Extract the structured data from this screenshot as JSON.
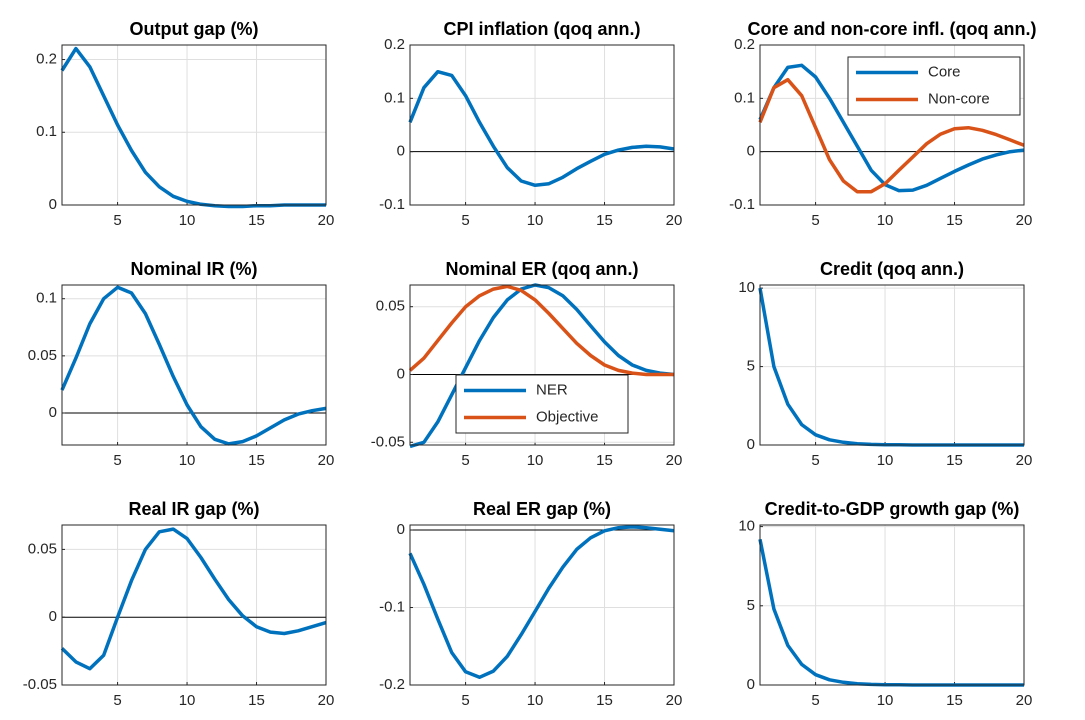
{
  "chart_data": [
    {
      "type": "line",
      "title": "Output gap (%)",
      "x": [
        1,
        2,
        3,
        4,
        5,
        6,
        7,
        8,
        9,
        10,
        11,
        12,
        13,
        14,
        15,
        16,
        17,
        18,
        19,
        20
      ],
      "xlim": [
        1,
        20
      ],
      "xticks": [
        5,
        10,
        15,
        20
      ],
      "ylim": [
        0,
        0.22
      ],
      "yticks": [
        0,
        0.1,
        0.2
      ],
      "grid": true,
      "series": [
        {
          "color": "#0072bd",
          "values": [
            0.185,
            0.215,
            0.19,
            0.15,
            0.11,
            0.075,
            0.045,
            0.025,
            0.012,
            0.005,
            0.001,
            -0.001,
            -0.002,
            -0.002,
            -0.001,
            -0.001,
            0,
            0,
            0,
            0
          ]
        }
      ]
    },
    {
      "type": "line",
      "title": "CPI inflation (qoq ann.)",
      "x": [
        1,
        2,
        3,
        4,
        5,
        6,
        7,
        8,
        9,
        10,
        11,
        12,
        13,
        14,
        15,
        16,
        17,
        18,
        19,
        20
      ],
      "xlim": [
        1,
        20
      ],
      "xticks": [
        5,
        10,
        15,
        20
      ],
      "ylim": [
        -0.1,
        0.2
      ],
      "yticks": [
        -0.1,
        0,
        0.1,
        0.2
      ],
      "grid": true,
      "series": [
        {
          "color": "#0072bd",
          "values": [
            0.055,
            0.12,
            0.15,
            0.143,
            0.105,
            0.055,
            0.01,
            -0.03,
            -0.055,
            -0.063,
            -0.06,
            -0.048,
            -0.032,
            -0.018,
            -0.005,
            0.003,
            0.008,
            0.01,
            0.009,
            0.005
          ]
        }
      ]
    },
    {
      "type": "line",
      "title": "Core and non-core infl. (qoq ann.)",
      "x": [
        1,
        2,
        3,
        4,
        5,
        6,
        7,
        8,
        9,
        10,
        11,
        12,
        13,
        14,
        15,
        16,
        17,
        18,
        19,
        20
      ],
      "xlim": [
        1,
        20
      ],
      "xticks": [
        5,
        10,
        15,
        20
      ],
      "ylim": [
        -0.1,
        0.2
      ],
      "yticks": [
        -0.1,
        0,
        0.1,
        0.2
      ],
      "grid": true,
      "legend": "northeast",
      "series": [
        {
          "name": "Core",
          "color": "#0072bd",
          "values": [
            0.06,
            0.12,
            0.158,
            0.162,
            0.14,
            0.1,
            0.055,
            0.01,
            -0.035,
            -0.062,
            -0.073,
            -0.072,
            -0.063,
            -0.05,
            -0.037,
            -0.025,
            -0.014,
            -0.006,
            0,
            0.003
          ]
        },
        {
          "name": "Non-core",
          "color": "#d95319",
          "values": [
            0.055,
            0.12,
            0.135,
            0.105,
            0.045,
            -0.015,
            -0.055,
            -0.075,
            -0.075,
            -0.06,
            -0.035,
            -0.01,
            0.015,
            0.033,
            0.043,
            0.045,
            0.04,
            0.032,
            0.022,
            0.012
          ]
        }
      ]
    },
    {
      "type": "line",
      "title": "Nominal IR (%)",
      "x": [
        1,
        2,
        3,
        4,
        5,
        6,
        7,
        8,
        9,
        10,
        11,
        12,
        13,
        14,
        15,
        16,
        17,
        18,
        19,
        20
      ],
      "xlim": [
        1,
        20
      ],
      "xticks": [
        5,
        10,
        15,
        20
      ],
      "ylim": [
        -0.028,
        0.112
      ],
      "yticks": [
        0,
        0.05,
        0.1
      ],
      "grid": true,
      "series": [
        {
          "color": "#0072bd",
          "values": [
            0.02,
            0.048,
            0.078,
            0.1,
            0.11,
            0.105,
            0.087,
            0.06,
            0.032,
            0.007,
            -0.012,
            -0.023,
            -0.027,
            -0.025,
            -0.02,
            -0.013,
            -0.006,
            -0.001,
            0.002,
            0.004
          ]
        }
      ]
    },
    {
      "type": "line",
      "title": "Nominal ER (qoq ann.)",
      "x": [
        1,
        2,
        3,
        4,
        5,
        6,
        7,
        8,
        9,
        10,
        11,
        12,
        13,
        14,
        15,
        16,
        17,
        18,
        19,
        20
      ],
      "xlim": [
        1,
        20
      ],
      "xticks": [
        5,
        10,
        15,
        20
      ],
      "ylim": [
        -0.052,
        0.066
      ],
      "yticks": [
        -0.05,
        0,
        0.05
      ],
      "grid": true,
      "legend": "south",
      "series": [
        {
          "name": "NER",
          "color": "#0072bd",
          "values": [
            -0.053,
            -0.05,
            -0.035,
            -0.015,
            0.005,
            0.025,
            0.042,
            0.055,
            0.063,
            0.066,
            0.064,
            0.058,
            0.048,
            0.036,
            0.024,
            0.014,
            0.007,
            0.003,
            0.001,
            0
          ]
        },
        {
          "name": "Objective",
          "color": "#d95319",
          "values": [
            0.003,
            0.012,
            0.025,
            0.038,
            0.05,
            0.058,
            0.063,
            0.065,
            0.062,
            0.055,
            0.045,
            0.034,
            0.023,
            0.014,
            0.007,
            0.003,
            0.001,
            0,
            0,
            0
          ]
        }
      ]
    },
    {
      "type": "line",
      "title": "Credit (qoq ann.)",
      "x": [
        1,
        2,
        3,
        4,
        5,
        6,
        7,
        8,
        9,
        10,
        11,
        12,
        13,
        14,
        15,
        16,
        17,
        18,
        19,
        20
      ],
      "xlim": [
        1,
        20
      ],
      "xticks": [
        5,
        10,
        15,
        20
      ],
      "ylim": [
        0,
        10.2
      ],
      "yticks": [
        0,
        5,
        10
      ],
      "grid": true,
      "series": [
        {
          "color": "#0072bd",
          "values": [
            10,
            5,
            2.6,
            1.3,
            0.65,
            0.33,
            0.17,
            0.08,
            0.04,
            0.02,
            0.01,
            0,
            0,
            0,
            0,
            0,
            0,
            0,
            0,
            0
          ]
        }
      ]
    },
    {
      "type": "line",
      "title": "Real IR gap (%)",
      "x": [
        1,
        2,
        3,
        4,
        5,
        6,
        7,
        8,
        9,
        10,
        11,
        12,
        13,
        14,
        15,
        16,
        17,
        18,
        19,
        20
      ],
      "xlim": [
        1,
        20
      ],
      "xticks": [
        5,
        10,
        15,
        20
      ],
      "ylim": [
        -0.05,
        0.068
      ],
      "yticks": [
        -0.05,
        0,
        0.05
      ],
      "grid": true,
      "series": [
        {
          "color": "#0072bd",
          "values": [
            -0.023,
            -0.033,
            -0.038,
            -0.028,
            0,
            0.027,
            0.05,
            0.063,
            0.065,
            0.058,
            0.044,
            0.028,
            0.013,
            0.001,
            -0.007,
            -0.011,
            -0.012,
            -0.01,
            -0.007,
            -0.004
          ]
        }
      ]
    },
    {
      "type": "line",
      "title": "Real ER gap (%)",
      "x": [
        1,
        2,
        3,
        4,
        5,
        6,
        7,
        8,
        9,
        10,
        11,
        12,
        13,
        14,
        15,
        16,
        17,
        18,
        19,
        20
      ],
      "xlim": [
        1,
        20
      ],
      "xticks": [
        5,
        10,
        15,
        20
      ],
      "ylim": [
        -0.2,
        0.0065
      ],
      "yticks": [
        -0.2,
        -0.1,
        0
      ],
      "grid": true,
      "series": [
        {
          "color": "#0072bd",
          "values": [
            -0.03,
            -0.07,
            -0.115,
            -0.158,
            -0.183,
            -0.19,
            -0.182,
            -0.163,
            -0.135,
            -0.105,
            -0.075,
            -0.048,
            -0.025,
            -0.01,
            -0.001,
            0.003,
            0.004,
            0.003,
            0.001,
            -0.001
          ]
        }
      ]
    },
    {
      "type": "line",
      "title": "Credit-to-GDP growth gap (%)",
      "x": [
        1,
        2,
        3,
        4,
        5,
        6,
        7,
        8,
        9,
        10,
        11,
        12,
        13,
        14,
        15,
        16,
        17,
        18,
        19,
        20
      ],
      "xlim": [
        1,
        20
      ],
      "xticks": [
        5,
        10,
        15,
        20
      ],
      "ylim": [
        0,
        10.1
      ],
      "yticks": [
        0,
        5,
        10
      ],
      "grid": true,
      "series": [
        {
          "color": "#0072bd",
          "values": [
            9.2,
            4.8,
            2.5,
            1.3,
            0.65,
            0.33,
            0.17,
            0.08,
            0.04,
            0.02,
            0.01,
            0,
            0,
            0,
            0,
            0,
            0,
            0,
            0,
            0
          ]
        }
      ]
    }
  ]
}
